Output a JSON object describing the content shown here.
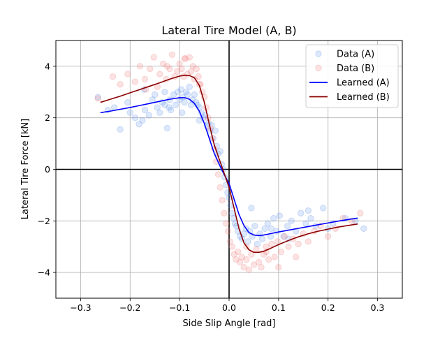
{
  "chart_data": {
    "type": "scatter",
    "title": "Lateral Tire Model (A, B)",
    "xlabel": "Side Slip Angle [rad]",
    "ylabel": "Lateral Tire Force [kN]",
    "xlim": [
      -0.35,
      0.35
    ],
    "ylim": [
      -5,
      5
    ],
    "xticks": [
      -0.3,
      -0.2,
      -0.1,
      0.0,
      0.1,
      0.2,
      0.3
    ],
    "xtick_labels": [
      "−0.3",
      "−0.2",
      "−0.1",
      "0.0",
      "0.1",
      "0.2",
      "0.3"
    ],
    "yticks": [
      -4,
      -2,
      0,
      2,
      4
    ],
    "ytick_labels": [
      "−4",
      "−2",
      "0",
      "2",
      "4"
    ],
    "grid": true,
    "legend_position": "top-right",
    "colors": {
      "data_a": "#6495ed",
      "data_b": "#f08080",
      "learned_a": "#0000ff",
      "learned_b": "#8b0000",
      "zero_lines": "#000000",
      "grid": "#b0b0b0"
    },
    "legend": [
      {
        "label": "Data (A)",
        "kind": "marker",
        "color": "#6495ed"
      },
      {
        "label": "Data (B)",
        "kind": "marker",
        "color": "#f08080"
      },
      {
        "label": "Learned (A)",
        "kind": "line",
        "color": "#0000ff"
      },
      {
        "label": "Learned (B)",
        "kind": "line",
        "color": "#8b0000"
      }
    ],
    "series": [
      {
        "name": "Data (A)",
        "kind": "scatter",
        "x": [
          -0.265,
          -0.245,
          -0.232,
          -0.22,
          -0.205,
          -0.2,
          -0.19,
          -0.182,
          -0.175,
          -0.17,
          -0.162,
          -0.155,
          -0.15,
          -0.145,
          -0.14,
          -0.135,
          -0.13,
          -0.125,
          -0.12,
          -0.118,
          -0.112,
          -0.108,
          -0.104,
          -0.1,
          -0.097,
          -0.094,
          -0.09,
          -0.087,
          -0.084,
          -0.08,
          -0.077,
          -0.074,
          -0.07,
          -0.067,
          -0.064,
          -0.06,
          -0.056,
          -0.052,
          -0.048,
          -0.045,
          -0.042,
          -0.038,
          -0.035,
          -0.032,
          -0.028,
          -0.025,
          -0.022,
          -0.018,
          -0.015,
          -0.012,
          -0.009,
          -0.006,
          -0.003,
          0.0,
          0.003,
          0.006,
          0.009,
          0.012,
          0.015,
          0.018,
          0.022,
          0.026,
          0.03,
          0.034,
          0.038,
          0.042,
          0.047,
          0.052,
          0.057,
          0.062,
          0.067,
          0.072,
          0.078,
          0.084,
          0.09,
          0.096,
          0.102,
          0.11,
          0.118,
          0.126,
          0.135,
          0.145,
          0.155,
          0.165,
          0.175,
          0.19,
          0.21,
          0.235,
          0.255,
          0.272,
          -0.13,
          -0.095,
          -0.06,
          0.045,
          0.085,
          0.12,
          0.16,
          0.2,
          -0.172,
          -0.121
        ],
        "y": [
          2.8,
          2.3,
          2.4,
          1.55,
          2.6,
          2.2,
          2.0,
          1.75,
          1.9,
          2.3,
          2.1,
          2.7,
          2.9,
          2.4,
          2.2,
          2.6,
          2.5,
          1.6,
          2.7,
          2.3,
          2.9,
          2.5,
          3.0,
          2.7,
          3.1,
          2.8,
          2.6,
          3.0,
          2.9,
          3.2,
          2.5,
          2.7,
          2.9,
          2.6,
          2.5,
          2.4,
          2.2,
          2.0,
          2.1,
          1.7,
          1.8,
          1.5,
          1.7,
          1.2,
          1.5,
          0.9,
          0.6,
          0.7,
          0.2,
          0.0,
          -0.3,
          -0.6,
          -0.9,
          -1.1,
          -1.4,
          -1.7,
          -1.9,
          -2.1,
          -2.2,
          -2.4,
          -2.6,
          -2.7,
          -2.5,
          -2.3,
          -2.8,
          -2.4,
          -2.6,
          -2.2,
          -2.9,
          -2.5,
          -2.7,
          -2.3,
          -2.1,
          -2.6,
          -1.9,
          -2.4,
          -1.8,
          -2.6,
          -2.2,
          -2.0,
          -2.4,
          -1.7,
          -2.1,
          -1.9,
          -2.2,
          -1.5,
          -2.1,
          -1.9,
          -2.0,
          -2.3,
          3.0,
          2.2,
          1.9,
          -1.5,
          -2.3,
          -2.7,
          -1.6,
          -2.3,
          3.1,
          2.4
        ]
      },
      {
        "name": "Data (B)",
        "kind": "scatter",
        "x": [
          -0.265,
          -0.235,
          -0.22,
          -0.205,
          -0.19,
          -0.18,
          -0.168,
          -0.16,
          -0.152,
          -0.145,
          -0.14,
          -0.133,
          -0.127,
          -0.12,
          -0.115,
          -0.11,
          -0.105,
          -0.1,
          -0.096,
          -0.092,
          -0.088,
          -0.084,
          -0.08,
          -0.077,
          -0.073,
          -0.07,
          -0.066,
          -0.062,
          -0.058,
          -0.054,
          -0.05,
          -0.046,
          -0.042,
          -0.038,
          -0.034,
          -0.03,
          -0.026,
          -0.022,
          -0.018,
          -0.014,
          -0.01,
          -0.006,
          -0.002,
          0.002,
          0.006,
          0.01,
          0.014,
          0.018,
          0.022,
          0.026,
          0.03,
          0.035,
          0.04,
          0.045,
          0.05,
          0.055,
          0.06,
          0.065,
          0.07,
          0.075,
          0.08,
          0.086,
          0.092,
          0.098,
          0.105,
          0.112,
          0.12,
          0.13,
          0.14,
          0.15,
          0.16,
          0.172,
          0.185,
          0.2,
          0.215,
          0.23,
          0.248,
          0.265,
          -0.17,
          -0.125,
          -0.09,
          -0.06,
          0.035,
          0.075,
          0.1,
          0.135
        ],
        "y": [
          2.75,
          3.6,
          3.3,
          3.7,
          3.4,
          4.0,
          3.1,
          3.9,
          4.35,
          3.2,
          3.7,
          4.1,
          3.5,
          3.9,
          4.45,
          3.6,
          3.8,
          4.1,
          3.9,
          3.6,
          4.3,
          3.7,
          4.35,
          3.8,
          4.0,
          3.5,
          3.9,
          3.6,
          3.3,
          3.0,
          2.8,
          2.4,
          2.0,
          1.6,
          1.2,
          0.8,
          0.3,
          -0.2,
          -0.7,
          -1.2,
          -1.7,
          -2.1,
          -2.4,
          -2.8,
          -3.0,
          -3.3,
          -3.5,
          -3.2,
          -3.6,
          -3.4,
          -3.8,
          -3.5,
          -3.9,
          -3.3,
          -3.7,
          -3.1,
          -3.6,
          -3.8,
          -3.3,
          -3.0,
          -3.5,
          -2.9,
          -3.4,
          -2.8,
          -3.2,
          -2.6,
          -3.0,
          -2.7,
          -2.9,
          -2.5,
          -2.8,
          -2.4,
          -2.2,
          -2.6,
          -2.3,
          -1.9,
          -2.0,
          -1.7,
          3.5,
          4.0,
          4.3,
          3.3,
          -3.0,
          -3.2,
          -3.8,
          -3.4
        ]
      },
      {
        "name": "Learned (A)",
        "kind": "line",
        "x": [
          -0.26,
          -0.24,
          -0.22,
          -0.2,
          -0.18,
          -0.16,
          -0.14,
          -0.12,
          -0.1,
          -0.09,
          -0.08,
          -0.07,
          -0.06,
          -0.05,
          -0.04,
          -0.03,
          -0.02,
          -0.01,
          0.0,
          0.01,
          0.02,
          0.03,
          0.04,
          0.05,
          0.06,
          0.07,
          0.08,
          0.09,
          0.1,
          0.12,
          0.14,
          0.16,
          0.18,
          0.2,
          0.22,
          0.24,
          0.26
        ],
        "y": [
          2.2,
          2.26,
          2.33,
          2.4,
          2.48,
          2.56,
          2.64,
          2.72,
          2.78,
          2.78,
          2.72,
          2.56,
          2.25,
          1.78,
          1.2,
          0.62,
          0.2,
          -0.2,
          -0.55,
          -1.15,
          -1.75,
          -2.18,
          -2.45,
          -2.55,
          -2.57,
          -2.55,
          -2.51,
          -2.47,
          -2.43,
          -2.36,
          -2.29,
          -2.22,
          -2.15,
          -2.08,
          -2.01,
          -1.95,
          -1.89
        ]
      },
      {
        "name": "Learned (B)",
        "kind": "line",
        "x": [
          -0.26,
          -0.24,
          -0.22,
          -0.2,
          -0.18,
          -0.16,
          -0.14,
          -0.12,
          -0.1,
          -0.09,
          -0.08,
          -0.07,
          -0.06,
          -0.05,
          -0.04,
          -0.03,
          -0.02,
          -0.01,
          0.0,
          0.01,
          0.02,
          0.03,
          0.04,
          0.05,
          0.06,
          0.07,
          0.08,
          0.09,
          0.1,
          0.12,
          0.14,
          0.16,
          0.18,
          0.2,
          0.22,
          0.24,
          0.26
        ],
        "y": [
          2.6,
          2.72,
          2.84,
          2.97,
          3.1,
          3.23,
          3.36,
          3.5,
          3.62,
          3.65,
          3.64,
          3.55,
          3.25,
          2.6,
          1.75,
          0.95,
          0.4,
          -0.15,
          -0.7,
          -1.5,
          -2.3,
          -2.85,
          -3.12,
          -3.22,
          -3.22,
          -3.18,
          -3.1,
          -3.01,
          -2.92,
          -2.76,
          -2.62,
          -2.5,
          -2.4,
          -2.32,
          -2.24,
          -2.18,
          -2.12
        ]
      }
    ]
  }
}
